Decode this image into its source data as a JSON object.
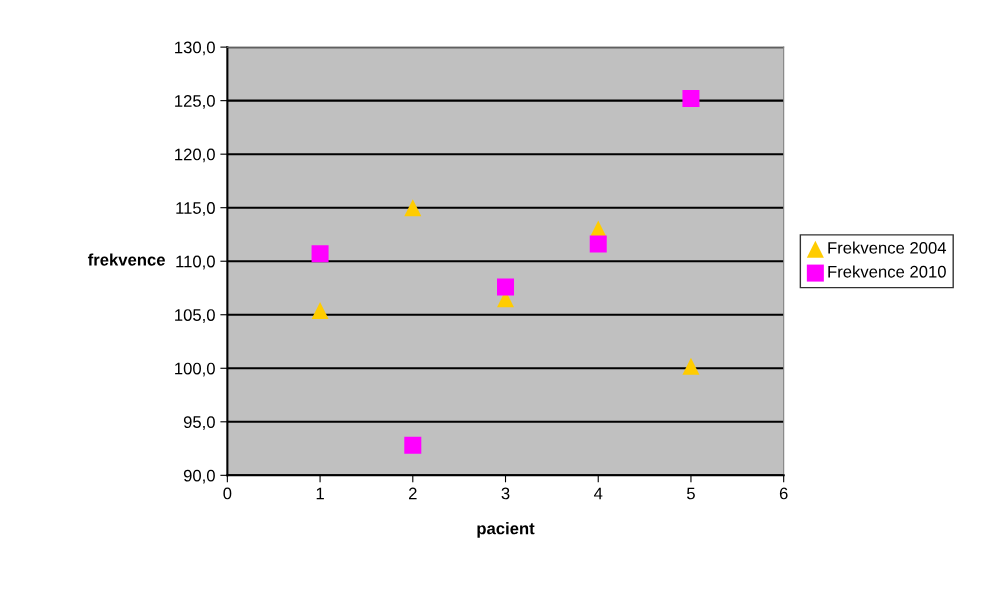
{
  "chart_data": {
    "type": "scatter",
    "xlabel": "pacient",
    "ylabel": "frekvence",
    "xlim": [
      0,
      6
    ],
    "xticks": [
      0,
      1,
      2,
      3,
      4,
      5,
      6
    ],
    "ylim": [
      90,
      130
    ],
    "yticks": [
      {
        "value": 90,
        "label": "90,0"
      },
      {
        "value": 95,
        "label": "95,0"
      },
      {
        "value": 100,
        "label": "100,0"
      },
      {
        "value": 105,
        "label": "105,0"
      },
      {
        "value": 110,
        "label": "110,0"
      },
      {
        "value": 115,
        "label": "115,0"
      },
      {
        "value": 120,
        "label": "120,0"
      },
      {
        "value": 125,
        "label": "125,0"
      },
      {
        "value": 130,
        "label": "130,0"
      }
    ],
    "grid": "y",
    "legend": "right",
    "series": [
      {
        "name": "Frekvence 2004",
        "color": "#ffcc00",
        "marker": "triangle",
        "x": [
          1,
          2,
          3,
          4,
          5
        ],
        "values": [
          105.4,
          115.0,
          106.5,
          113.0,
          100.2
        ]
      },
      {
        "name": "Frekvence 2010",
        "color": "#ff00ff",
        "marker": "square",
        "x": [
          1,
          2,
          3,
          4,
          5
        ],
        "values": [
          110.7,
          92.8,
          107.6,
          111.6,
          125.2
        ]
      }
    ]
  }
}
